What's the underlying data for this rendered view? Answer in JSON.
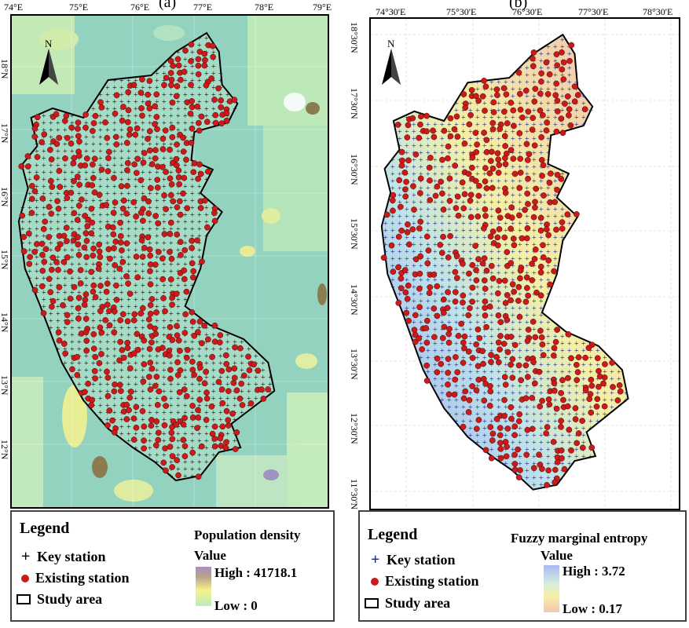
{
  "panels": [
    {
      "panel_label": "(a)",
      "top_ticks": [
        "74°E",
        "75°E",
        "76°E",
        "77°E",
        "78°E",
        "79°E"
      ],
      "left_ticks": [
        "18°N",
        "17°N",
        "16°N",
        "15°N",
        "14°N",
        "13°N",
        "12°N"
      ],
      "north_label": "N",
      "legend": {
        "title": "Legend",
        "key_station": "Key station",
        "existing_station": "Existing station",
        "study_area": "Study area",
        "layer_title": "Population density",
        "value_label": "Value",
        "high": "High : 41718.1",
        "low": "Low : 0"
      },
      "colors": {
        "background": "#94d2c0",
        "ramp_high": "#a98ec0",
        "ramp_mid": "#f7f28a",
        "ramp_low": "#b9eec0",
        "station": "#cc1a1a",
        "key": "#111111"
      }
    },
    {
      "panel_label": "(b)",
      "top_ticks": [
        "74°30'E",
        "75°30'E",
        "76°30'E",
        "77°30'E",
        "78°30'E"
      ],
      "left_ticks": [
        "18°30'N",
        "17°30'N",
        "16°30'N",
        "15°30'N",
        "14°30'N",
        "13°30'N",
        "12°30'N",
        "11°30'N"
      ],
      "north_label": "N",
      "legend": {
        "title": "Legend",
        "key_station": "Key station",
        "existing_station": "Existing station",
        "study_area": "Study area",
        "layer_title": "Fuzzy marginal entropy",
        "value_label": "Value",
        "high": "High : 3.72",
        "low": "Low : 0.17"
      },
      "colors": {
        "background": "#ffffff",
        "ramp_high": "#a9b8f5",
        "ramp_mid": "#f5f0a5",
        "ramp_low": "#f2c8b4",
        "station": "#cc1a1a",
        "key": "#1b2a8c"
      }
    }
  ]
}
